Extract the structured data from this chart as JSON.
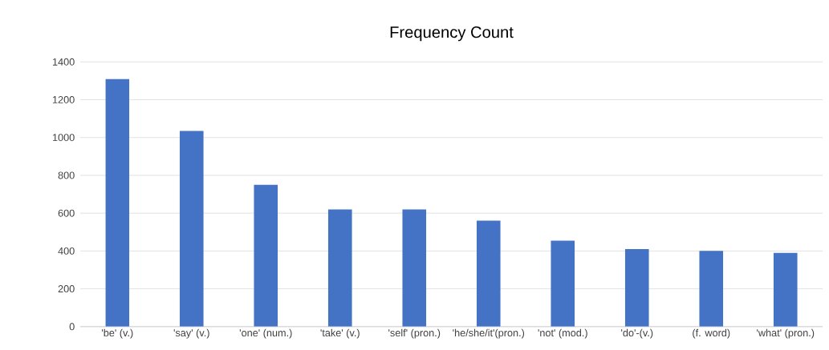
{
  "chart_data": {
    "type": "bar",
    "title": "Frequency Count",
    "categories": [
      "'be' (v.)",
      "'say' (v.)",
      "'one' (num.)",
      "'take' (v.)",
      "'self' (pron.)",
      "'he/she/it'(pron.)",
      "'not' (mod.)",
      "'do'-(v.)",
      "(f. word)",
      "'what' (pron.)"
    ],
    "values": [
      1310,
      1035,
      750,
      620,
      620,
      560,
      455,
      410,
      400,
      390
    ],
    "color": "#4472c4",
    "ylim": [
      0,
      1400
    ],
    "yticks": [
      0,
      200,
      400,
      600,
      800,
      1000,
      1200,
      1400
    ],
    "grid": "y"
  }
}
